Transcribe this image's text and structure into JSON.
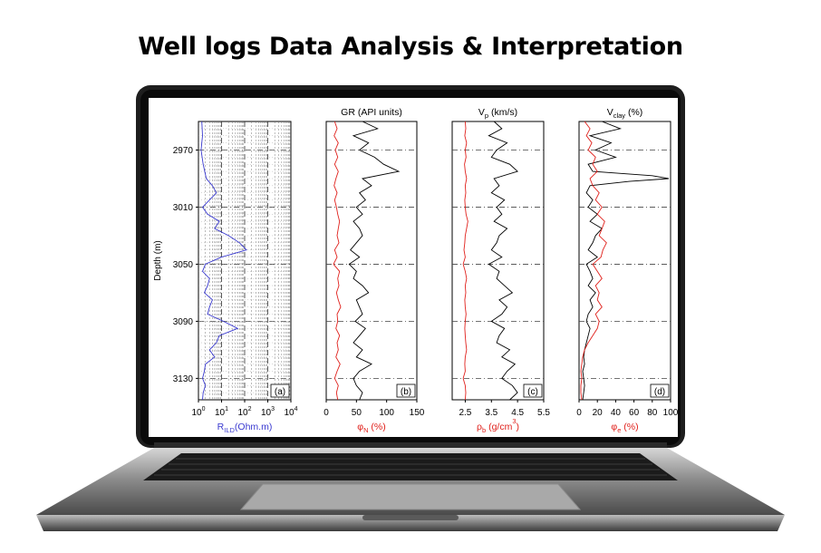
{
  "page": {
    "title": "Well logs Data Analysis & Interpretation"
  },
  "colors": {
    "red": "#e0201b",
    "blue": "#3a3ad0",
    "black": "#000000",
    "grid": "#555555"
  },
  "chart_data": [
    {
      "type": "line",
      "panel": "(a)",
      "title": "",
      "xlabel": "R",
      "xlabel_sub": "ILD",
      "xlabel_tail": "(Ohm.m)",
      "xlabel_color": "#3a3ad0",
      "ylabel": "Depth (m)",
      "xscale": "log",
      "xlim": [
        1,
        10000
      ],
      "ylim": [
        2950,
        3145
      ],
      "yticks": [
        "2970",
        "3010",
        "3050",
        "3090",
        "3130"
      ],
      "xticks": [
        {
          "base": "10",
          "exp": "0"
        },
        {
          "base": "10",
          "exp": "1"
        },
        {
          "base": "10",
          "exp": "2"
        },
        {
          "base": "10",
          "exp": "3"
        },
        {
          "base": "10",
          "exp": "4"
        }
      ],
      "series": [
        {
          "color": "#3a3ad0",
          "depth": [
            2950,
            2960,
            2970,
            2980,
            2990,
            2995,
            3000,
            3005,
            3010,
            3015,
            3020,
            3025,
            3030,
            3035,
            3040,
            3045,
            3050,
            3055,
            3060,
            3065,
            3070,
            3075,
            3080,
            3085,
            3090,
            3095,
            3100,
            3105,
            3110,
            3115,
            3120,
            3125,
            3130,
            3135,
            3140,
            3145
          ],
          "x": [
            1.4,
            1.5,
            1.3,
            1.6,
            2.2,
            4,
            6,
            3,
            1.5,
            2.5,
            8,
            5,
            20,
            60,
            120,
            10,
            2,
            1.5,
            3,
            2.5,
            1.8,
            4,
            3,
            2.5,
            12,
            50,
            8,
            6,
            3,
            5,
            2,
            1.8,
            1.5,
            2,
            1.6,
            1.5
          ]
        }
      ]
    },
    {
      "type": "line",
      "panel": "(b)",
      "title": "GR (API units)",
      "xlabel": "φ",
      "xlabel_sub": "N",
      "xlabel_tail": " (%)",
      "xlabel_color": "#e0201b",
      "xlim": [
        0,
        150
      ],
      "xticks": [
        "0",
        "50",
        "100",
        "150"
      ],
      "series": [
        {
          "name": "GR",
          "color": "#000000",
          "depth": [
            2950,
            2955,
            2960,
            2965,
            2970,
            2975,
            2980,
            2985,
            2990,
            2995,
            3000,
            3005,
            3010,
            3015,
            3020,
            3025,
            3030,
            3035,
            3040,
            3045,
            3050,
            3055,
            3060,
            3065,
            3070,
            3075,
            3080,
            3085,
            3090,
            3095,
            3100,
            3105,
            3110,
            3115,
            3120,
            3125,
            3130,
            3135,
            3140,
            3145
          ],
          "x": [
            60,
            85,
            45,
            70,
            55,
            80,
            95,
            120,
            60,
            75,
            55,
            65,
            50,
            60,
            45,
            55,
            60,
            50,
            40,
            55,
            38,
            50,
            45,
            60,
            70,
            50,
            55,
            60,
            48,
            65,
            55,
            45,
            60,
            50,
            75,
            55,
            45,
            50,
            60,
            55
          ]
        },
        {
          "name": "φN",
          "color": "#e0201b",
          "depth": [
            2950,
            2955,
            2960,
            2965,
            2970,
            2975,
            2980,
            2985,
            2990,
            2995,
            3000,
            3005,
            3010,
            3015,
            3020,
            3025,
            3030,
            3035,
            3040,
            3045,
            3050,
            3055,
            3060,
            3065,
            3070,
            3075,
            3080,
            3085,
            3090,
            3095,
            3100,
            3105,
            3110,
            3115,
            3120,
            3125,
            3130,
            3135,
            3140,
            3145
          ],
          "x": [
            14,
            18,
            13,
            20,
            15,
            19,
            14,
            20,
            16,
            13,
            18,
            14,
            17,
            19,
            22,
            20,
            18,
            21,
            14,
            18,
            12,
            22,
            19,
            21,
            17,
            20,
            24,
            18,
            19,
            16,
            22,
            18,
            20,
            16,
            23,
            18,
            14,
            20,
            17,
            19
          ]
        }
      ]
    },
    {
      "type": "line",
      "panel": "(c)",
      "title": "V",
      "title_sub": "p",
      "title_tail": " (km/s)",
      "xlabel": "ρ",
      "xlabel_sub": "b",
      "xlabel_tail": " (g/cm",
      "xlabel_sup": "3",
      "xlabel_end": ")",
      "xlabel_color": "#e0201b",
      "xlim": [
        2,
        5.5
      ],
      "xticks": [
        "2.5",
        "3.5",
        "4.5",
        "5.5"
      ],
      "series": [
        {
          "name": "Vp",
          "color": "#000000",
          "depth": [
            2950,
            2955,
            2960,
            2965,
            2970,
            2975,
            2980,
            2985,
            2990,
            2995,
            3000,
            3005,
            3010,
            3015,
            3020,
            3025,
            3030,
            3035,
            3040,
            3045,
            3050,
            3055,
            3060,
            3065,
            3070,
            3075,
            3080,
            3085,
            3090,
            3095,
            3100,
            3105,
            3110,
            3115,
            3120,
            3125,
            3130,
            3135,
            3140,
            3145
          ],
          "x": [
            3.6,
            3.9,
            3.4,
            4.1,
            3.7,
            3.5,
            4.2,
            4.5,
            3.6,
            3.8,
            3.5,
            4.0,
            3.7,
            3.9,
            3.6,
            4.1,
            3.8,
            3.7,
            3.5,
            3.9,
            3.4,
            3.8,
            3.7,
            4.0,
            4.3,
            3.8,
            4.1,
            3.9,
            3.5,
            4.0,
            3.8,
            3.7,
            4.2,
            3.9,
            4.4,
            4.1,
            3.9,
            4.3,
            4.5,
            4.2
          ]
        },
        {
          "name": "ρb",
          "color": "#e0201b",
          "depth": [
            2950,
            2955,
            2960,
            2965,
            2970,
            2975,
            2980,
            2985,
            2990,
            2995,
            3000,
            3005,
            3010,
            3015,
            3020,
            3025,
            3030,
            3035,
            3040,
            3045,
            3050,
            3055,
            3060,
            3065,
            3070,
            3075,
            3080,
            3085,
            3090,
            3095,
            3100,
            3105,
            3110,
            3115,
            3120,
            3125,
            3130,
            3135,
            3140,
            3145
          ],
          "x": [
            2.5,
            2.52,
            2.48,
            2.55,
            2.5,
            2.53,
            2.47,
            2.5,
            2.55,
            2.5,
            2.52,
            2.48,
            2.5,
            2.53,
            2.6,
            2.55,
            2.5,
            2.48,
            2.45,
            2.5,
            2.42,
            2.5,
            2.55,
            2.5,
            2.52,
            2.48,
            2.5,
            2.53,
            2.5,
            2.48,
            2.5,
            2.52,
            2.55,
            2.5,
            2.48,
            2.5,
            2.42,
            2.5,
            2.52,
            2.5
          ]
        }
      ]
    },
    {
      "type": "line",
      "panel": "(d)",
      "title": "V",
      "title_sub": "clay",
      "title_tail": " (%)",
      "xlabel": "φ",
      "xlabel_sub": "e",
      "xlabel_tail": " (%)",
      "xlabel_color": "#e0201b",
      "xlim": [
        0,
        100
      ],
      "xticks": [
        "0",
        "20",
        "40",
        "60",
        "80",
        "100"
      ],
      "series": [
        {
          "name": "Vclay",
          "color": "#000000",
          "depth": [
            2950,
            2955,
            2960,
            2965,
            2970,
            2975,
            2980,
            2985,
            2988,
            2990,
            2992,
            2995,
            3000,
            3005,
            3010,
            3015,
            3020,
            3025,
            3030,
            3035,
            3040,
            3045,
            3050,
            3055,
            3060,
            3065,
            3070,
            3075,
            3080,
            3085,
            3090,
            3095,
            3100,
            3105,
            3110,
            3115,
            3120,
            3125,
            3130,
            3135,
            3140,
            3145
          ],
          "x": [
            25,
            45,
            12,
            35,
            18,
            40,
            10,
            15,
            80,
            98,
            55,
            12,
            8,
            15,
            10,
            20,
            12,
            25,
            18,
            15,
            10,
            20,
            8,
            12,
            15,
            10,
            18,
            12,
            15,
            10,
            8,
            12,
            10,
            8,
            6,
            5,
            6,
            4,
            5,
            6,
            5,
            4
          ]
        },
        {
          "name": "φe",
          "color": "#e0201b",
          "depth": [
            2950,
            2955,
            2960,
            2965,
            2970,
            2975,
            2980,
            2985,
            2990,
            2995,
            3000,
            3005,
            3010,
            3015,
            3020,
            3025,
            3030,
            3035,
            3040,
            3045,
            3050,
            3055,
            3060,
            3065,
            3070,
            3075,
            3080,
            3085,
            3090,
            3095,
            3100,
            3105,
            3110,
            3115,
            3120,
            3125,
            3130,
            3135,
            3140,
            3145
          ],
          "x": [
            6,
            12,
            8,
            14,
            10,
            18,
            15,
            20,
            12,
            15,
            22,
            18,
            25,
            20,
            28,
            25,
            22,
            30,
            26,
            24,
            15,
            20,
            25,
            18,
            22,
            20,
            25,
            18,
            22,
            20,
            15,
            10,
            6,
            4,
            3,
            2,
            3,
            2,
            2,
            3
          ]
        }
      ]
    }
  ]
}
